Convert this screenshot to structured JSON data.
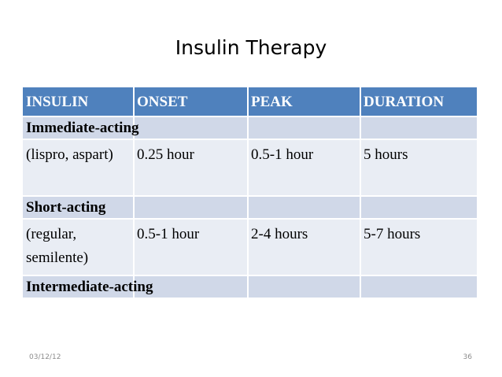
{
  "title": "Insulin Therapy",
  "table": {
    "header": [
      "INSULIN",
      "ONSET",
      "PEAK",
      "DURATION"
    ],
    "rows": [
      [
        "Immediate-acting"
      ],
      [
        "(lispro, aspart)",
        "0.25 hour",
        "0.5-1 hour",
        "5 hours"
      ],
      [
        "Short-acting"
      ],
      [
        "(regular, semilente)",
        "0.5-1 hour",
        "2-4 hours",
        "5-7 hours"
      ],
      [
        "Intermediate-acting"
      ]
    ]
  },
  "footer": {
    "date": "03/12/12",
    "page": "36"
  }
}
